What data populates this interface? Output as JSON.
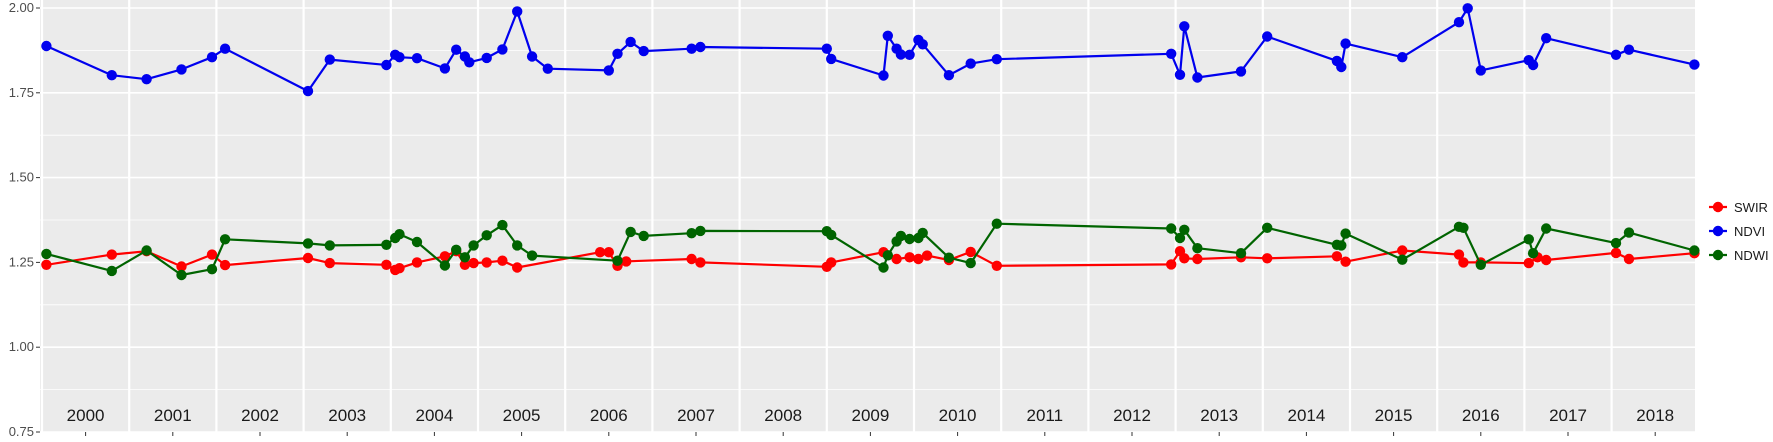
{
  "chart_data": {
    "type": "line",
    "title": "",
    "xlabel": "",
    "ylabel": "",
    "xlim": [
      2000.0,
      2019.0
    ],
    "ylim": [
      0.75,
      2.0
    ],
    "y_ticks": [
      "0.75",
      "1.00",
      "1.25",
      "1.50",
      "1.75",
      "2.00"
    ],
    "year_labels": [
      "2000",
      "2001",
      "2002",
      "2003",
      "2004",
      "2005",
      "2006",
      "2007",
      "2008",
      "2009",
      "2010",
      "2011",
      "2012",
      "2013",
      "2014",
      "2015",
      "2016",
      "2017",
      "2018"
    ],
    "grid": true,
    "legend_position": "right",
    "colors": {
      "panel": "#ebebeb",
      "grid": "#ffffff",
      "SWIR": "#ff0000",
      "NDVI": "#0000ee",
      "NDWI": "#006400"
    },
    "series": [
      {
        "name": "SWIR",
        "points": [
          [
            2000.05,
            1.243
          ],
          [
            2000.8,
            1.273
          ],
          [
            2001.2,
            1.283
          ],
          [
            2001.6,
            1.238
          ],
          [
            2001.95,
            1.273
          ],
          [
            2002.1,
            1.242
          ],
          [
            2003.05,
            1.263
          ],
          [
            2003.3,
            1.248
          ],
          [
            2003.95,
            1.243
          ],
          [
            2004.05,
            1.228
          ],
          [
            2004.1,
            1.233
          ],
          [
            2004.3,
            1.25
          ],
          [
            2004.62,
            1.268
          ],
          [
            2004.75,
            1.283
          ],
          [
            2004.85,
            1.243
          ],
          [
            2004.95,
            1.248
          ],
          [
            2005.1,
            1.25
          ],
          [
            2005.28,
            1.255
          ],
          [
            2005.45,
            1.235
          ],
          [
            2006.4,
            1.28
          ],
          [
            2006.5,
            1.28
          ],
          [
            2006.6,
            1.24
          ],
          [
            2006.7,
            1.253
          ],
          [
            2007.45,
            1.26
          ],
          [
            2007.55,
            1.25
          ],
          [
            2009.0,
            1.237
          ],
          [
            2009.05,
            1.25
          ],
          [
            2009.65,
            1.28
          ],
          [
            2009.8,
            1.26
          ],
          [
            2009.95,
            1.265
          ],
          [
            2010.05,
            1.26
          ],
          [
            2010.15,
            1.27
          ],
          [
            2010.4,
            1.257
          ],
          [
            2010.65,
            1.281
          ],
          [
            2010.95,
            1.24
          ],
          [
            2012.95,
            1.244
          ],
          [
            2013.05,
            1.283
          ],
          [
            2013.1,
            1.262
          ],
          [
            2013.25,
            1.26
          ],
          [
            2013.75,
            1.265
          ],
          [
            2014.05,
            1.262
          ],
          [
            2014.85,
            1.268
          ],
          [
            2014.95,
            1.252
          ],
          [
            2015.6,
            1.285
          ],
          [
            2016.25,
            1.273
          ],
          [
            2016.3,
            1.25
          ],
          [
            2016.5,
            1.25
          ],
          [
            2017.05,
            1.248
          ],
          [
            2017.15,
            1.265
          ],
          [
            2017.25,
            1.257
          ],
          [
            2018.05,
            1.278
          ],
          [
            2018.2,
            1.26
          ],
          [
            2018.95,
            1.277
          ]
        ]
      },
      {
        "name": "NDVI",
        "points": [
          [
            2000.05,
            1.888
          ],
          [
            2000.8,
            1.802
          ],
          [
            2001.2,
            1.79
          ],
          [
            2001.6,
            1.819
          ],
          [
            2001.95,
            1.855
          ],
          [
            2002.1,
            1.88
          ],
          [
            2003.05,
            1.755
          ],
          [
            2003.3,
            1.848
          ],
          [
            2003.95,
            1.832
          ],
          [
            2004.05,
            1.862
          ],
          [
            2004.1,
            1.855
          ],
          [
            2004.3,
            1.852
          ],
          [
            2004.62,
            1.822
          ],
          [
            2004.75,
            1.877
          ],
          [
            2004.85,
            1.857
          ],
          [
            2004.9,
            1.84
          ],
          [
            2005.1,
            1.853
          ],
          [
            2005.28,
            1.878
          ],
          [
            2005.45,
            1.99
          ],
          [
            2005.62,
            1.857
          ],
          [
            2005.8,
            1.821
          ],
          [
            2006.5,
            1.816
          ],
          [
            2006.6,
            1.865
          ],
          [
            2006.75,
            1.9
          ],
          [
            2006.9,
            1.873
          ],
          [
            2007.45,
            1.88
          ],
          [
            2007.55,
            1.885
          ],
          [
            2009.0,
            1.88
          ],
          [
            2009.05,
            1.85
          ],
          [
            2009.65,
            1.801
          ],
          [
            2009.7,
            1.918
          ],
          [
            2009.8,
            1.88
          ],
          [
            2009.85,
            1.863
          ],
          [
            2009.95,
            1.862
          ],
          [
            2010.05,
            1.906
          ],
          [
            2010.1,
            1.893
          ],
          [
            2010.4,
            1.802
          ],
          [
            2010.65,
            1.836
          ],
          [
            2010.95,
            1.849
          ],
          [
            2012.95,
            1.865
          ],
          [
            2013.05,
            1.803
          ],
          [
            2013.1,
            1.946
          ],
          [
            2013.25,
            1.795
          ],
          [
            2013.75,
            1.813
          ],
          [
            2014.05,
            1.916
          ],
          [
            2014.85,
            1.844
          ],
          [
            2014.9,
            1.826
          ],
          [
            2014.95,
            1.895
          ],
          [
            2015.6,
            1.855
          ],
          [
            2016.25,
            1.958
          ],
          [
            2016.35,
            1.999
          ],
          [
            2016.5,
            1.816
          ],
          [
            2017.05,
            1.846
          ],
          [
            2017.1,
            1.832
          ],
          [
            2017.25,
            1.911
          ],
          [
            2018.05,
            1.862
          ],
          [
            2018.2,
            1.877
          ],
          [
            2018.95,
            1.833
          ]
        ]
      },
      {
        "name": "NDWI",
        "points": [
          [
            2000.05,
            1.275
          ],
          [
            2000.8,
            1.225
          ],
          [
            2001.2,
            1.285
          ],
          [
            2001.6,
            1.213
          ],
          [
            2001.95,
            1.23
          ],
          [
            2002.1,
            1.318
          ],
          [
            2003.05,
            1.306
          ],
          [
            2003.3,
            1.3
          ],
          [
            2003.95,
            1.302
          ],
          [
            2004.05,
            1.322
          ],
          [
            2004.1,
            1.333
          ],
          [
            2004.3,
            1.31
          ],
          [
            2004.62,
            1.241
          ],
          [
            2004.75,
            1.287
          ],
          [
            2004.85,
            1.265
          ],
          [
            2004.95,
            1.3
          ],
          [
            2005.1,
            1.33
          ],
          [
            2005.28,
            1.36
          ],
          [
            2005.45,
            1.3
          ],
          [
            2005.62,
            1.27
          ],
          [
            2006.6,
            1.255
          ],
          [
            2006.75,
            1.34
          ],
          [
            2006.9,
            1.328
          ],
          [
            2007.45,
            1.336
          ],
          [
            2007.55,
            1.343
          ],
          [
            2009.0,
            1.342
          ],
          [
            2009.05,
            1.331
          ],
          [
            2009.65,
            1.235
          ],
          [
            2009.7,
            1.271
          ],
          [
            2009.8,
            1.312
          ],
          [
            2009.85,
            1.328
          ],
          [
            2009.95,
            1.319
          ],
          [
            2010.05,
            1.322
          ],
          [
            2010.1,
            1.337
          ],
          [
            2010.4,
            1.264
          ],
          [
            2010.65,
            1.248
          ],
          [
            2010.95,
            1.364
          ],
          [
            2012.95,
            1.35
          ],
          [
            2013.05,
            1.322
          ],
          [
            2013.1,
            1.346
          ],
          [
            2013.25,
            1.292
          ],
          [
            2013.75,
            1.277
          ],
          [
            2014.05,
            1.352
          ],
          [
            2014.85,
            1.302
          ],
          [
            2014.9,
            1.3
          ],
          [
            2014.95,
            1.335
          ],
          [
            2015.6,
            1.258
          ],
          [
            2016.25,
            1.355
          ],
          [
            2016.3,
            1.352
          ],
          [
            2016.5,
            1.243
          ],
          [
            2017.05,
            1.318
          ],
          [
            2017.1,
            1.277
          ],
          [
            2017.25,
            1.35
          ],
          [
            2018.05,
            1.307
          ],
          [
            2018.2,
            1.338
          ],
          [
            2018.95,
            1.285
          ]
        ]
      }
    ]
  }
}
